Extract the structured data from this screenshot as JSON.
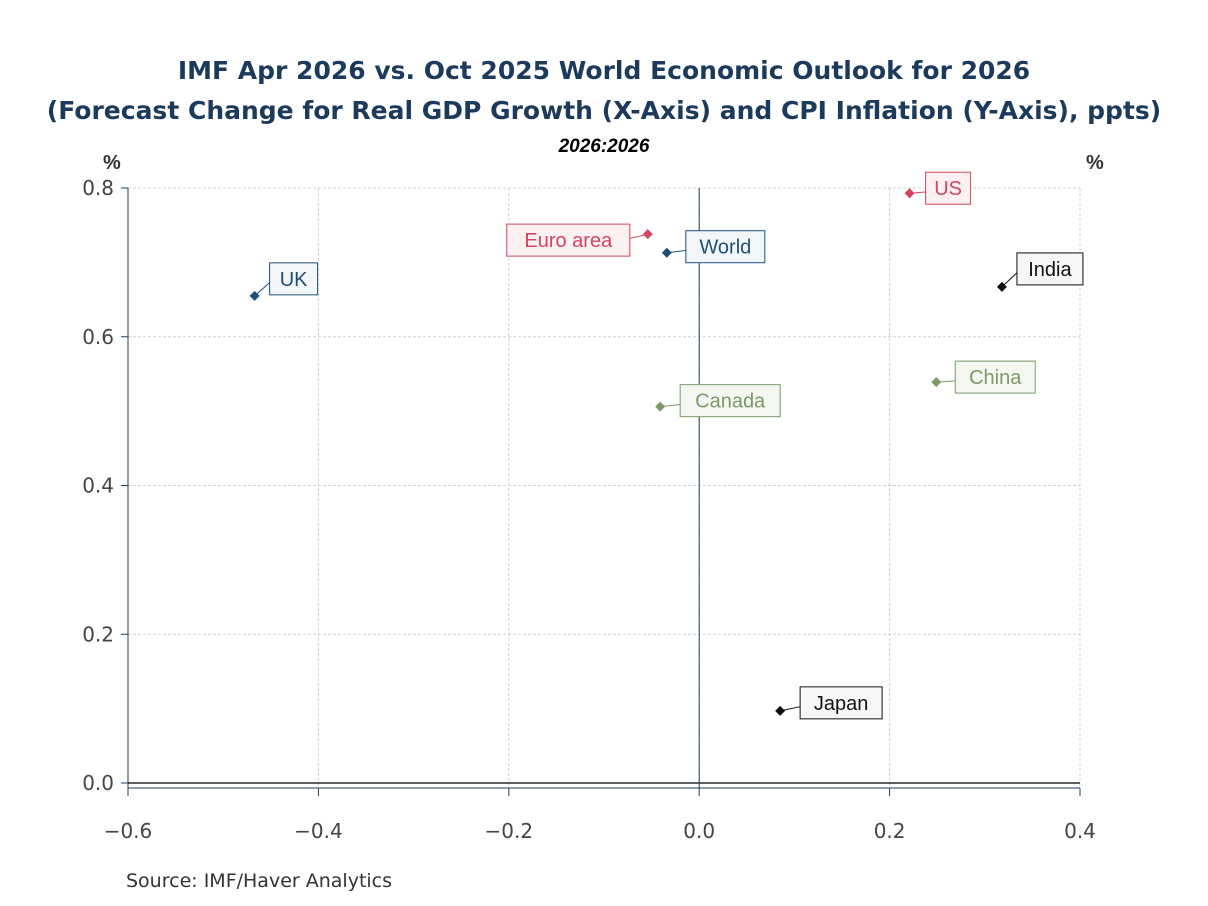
{
  "title_line1": "IMF Apr 2026 vs. Oct 2025 World Economic Outlook for 2026",
  "title_line2": "(Forecast Change for Real GDP Growth (X-Axis) and CPI Inflation (Y-Axis), ppts)",
  "subtitle": "2026:2026",
  "y_unit_left": "%",
  "y_unit_right": "%",
  "source": "Source:   IMF/Haver Analytics",
  "chart_data": {
    "type": "scatter",
    "title": "IMF Apr 2026 vs. Oct 2025 World Economic Outlook for 2026 (Forecast Change for Real GDP Growth (X-Axis) and CPI Inflation (Y-Axis), ppts)",
    "xlim": [
      -0.6,
      0.4
    ],
    "ylim": [
      0,
      0.8
    ],
    "xticks": [
      "-0.6",
      "-0.4",
      "-0.2",
      "0.0",
      "0.2",
      "0.4"
    ],
    "yticks": [
      "0.0",
      "0.2",
      "0.4",
      "0.6",
      "0.8"
    ],
    "grid": true,
    "points": [
      {
        "label": "UK",
        "x": -0.467,
        "y": 0.655,
        "color": "#1f4e79"
      },
      {
        "label": "Euro area",
        "x": -0.054,
        "y": 0.738,
        "color": "#d4445f"
      },
      {
        "label": "World",
        "x": -0.034,
        "y": 0.713,
        "color": "#1f4e79"
      },
      {
        "label": "US",
        "x": 0.221,
        "y": 0.793,
        "color": "#d4445f"
      },
      {
        "label": "India",
        "x": 0.318,
        "y": 0.667,
        "color": "#111111"
      },
      {
        "label": "China",
        "x": 0.249,
        "y": 0.539,
        "color": "#7a9a68"
      },
      {
        "label": "Canada",
        "x": -0.041,
        "y": 0.506,
        "color": "#7a9a68"
      },
      {
        "label": "Japan",
        "x": 0.085,
        "y": 0.097,
        "color": "#111111"
      }
    ]
  }
}
